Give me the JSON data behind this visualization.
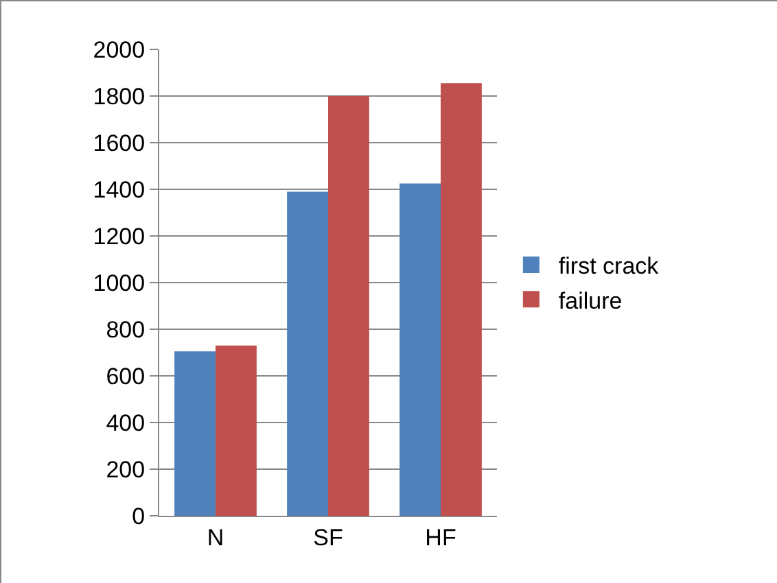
{
  "chart_data": {
    "type": "bar",
    "categories": [
      "N",
      "SF",
      "HF"
    ],
    "series": [
      {
        "name": "first crack",
        "color": "#4f81bd",
        "values": [
          705,
          1390,
          1425
        ]
      },
      {
        "name": "failure",
        "color": "#c0504d",
        "values": [
          730,
          1800,
          1855
        ]
      }
    ],
    "ylim": [
      0,
      2000
    ],
    "yticks": [
      0,
      200,
      400,
      600,
      800,
      1000,
      1200,
      1400,
      1600,
      1800,
      2000
    ],
    "grid": "y",
    "legend": "right"
  }
}
